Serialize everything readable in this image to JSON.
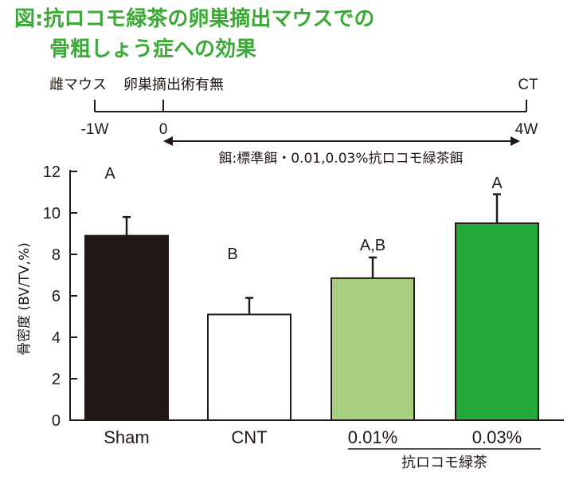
{
  "figure": {
    "title_line1": "図:抗ロコモ緑茶の卵巣摘出マウスでの",
    "title_line2": "骨粗しょう症への効果"
  },
  "timeline": {
    "label_left": "雌マウス",
    "label_mid": "卵巣摘出術有無",
    "label_right": "CT",
    "ticks": [
      "-1W",
      "0",
      "4W"
    ],
    "feed_note": "餌:標準餌・0.01,0.03%抗ロコモ緑茶餌"
  },
  "chart_data": {
    "type": "bar",
    "ylabel": "骨密度 (BV/TV,%)",
    "ylim": [
      0,
      12
    ],
    "yticks": [
      "0",
      "2",
      "4",
      "6",
      "8",
      "10",
      "12"
    ],
    "categories": [
      "Sham",
      "CNT",
      "0.01%",
      "0.03%"
    ],
    "values": [
      8.9,
      5.1,
      6.85,
      9.5
    ],
    "errors": [
      0.9,
      0.8,
      1.0,
      1.4
    ],
    "significance_letters": [
      "A",
      "B",
      "A,B",
      "A"
    ],
    "group_label": "抗ロコモ緑茶",
    "colors": [
      "#231815",
      "#ffffff",
      "#a8d081",
      "#22ab3a"
    ]
  }
}
